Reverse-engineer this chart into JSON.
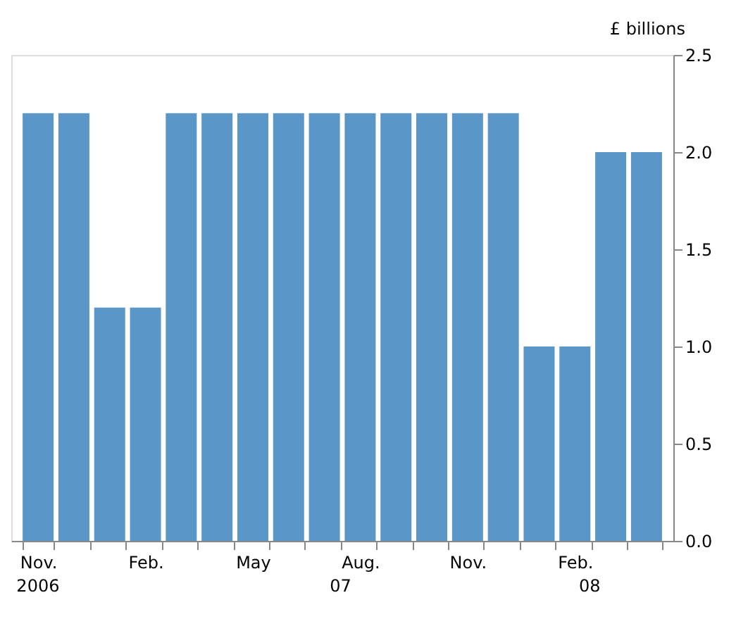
{
  "chart_data": {
    "type": "bar",
    "ylabel": "£ billions",
    "categories": [
      "Nov.",
      null,
      null,
      "Feb.",
      null,
      null,
      "May",
      null,
      null,
      "Aug.",
      null,
      null,
      "Nov.",
      null,
      null,
      "Feb.",
      null,
      null
    ],
    "values": [
      2.2,
      2.2,
      1.2,
      1.2,
      2.2,
      2.2,
      2.2,
      2.2,
      2.2,
      2.2,
      2.2,
      2.2,
      2.2,
      2.2,
      1.0,
      1.0,
      2.0,
      2.0
    ],
    "color": "#5b96c8",
    "annotations": [
      "2006",
      "07",
      "08"
    ],
    "ylim": [
      0,
      2.5
    ],
    "yticks": [
      {
        "value": 0,
        "label": "0.0"
      },
      0.5,
      {
        "value": 1,
        "label": "1.0"
      },
      1.5,
      {
        "value": 2,
        "label": "2.0"
      },
      2.5
    ]
  }
}
